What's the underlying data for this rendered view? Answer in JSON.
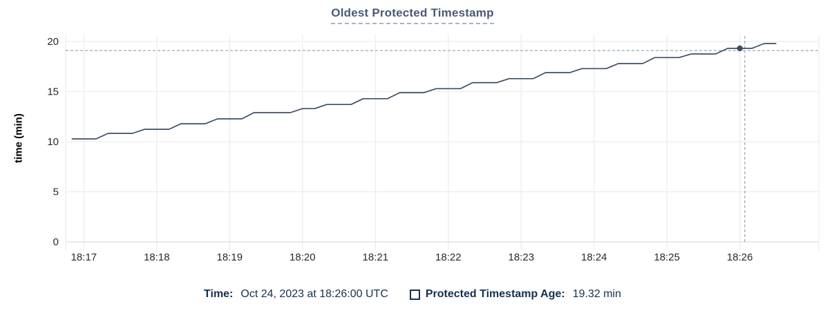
{
  "colors": {
    "line": "#3e4d63",
    "grid": "#efefef",
    "axis": "#e3e3e3",
    "tick_text": "#24292f",
    "title": "#4a5a74",
    "title_underline": "#a7b2c3",
    "legend_text": "#14304f",
    "crosshair": "#a3b8c4",
    "background": "#ffffff"
  },
  "chart_data": {
    "type": "line",
    "title": "Oldest Protected Timestamp",
    "xlabel": "",
    "ylabel": "time (min)",
    "grid": true,
    "x_domain": [
      "18:16:45",
      "18:27:05"
    ],
    "y_domain": [
      0,
      20.7
    ],
    "y_ticks": [
      0,
      5,
      10,
      15,
      20
    ],
    "x_ticks": [
      "18:17",
      "18:18",
      "18:19",
      "18:20",
      "18:21",
      "18:22",
      "18:23",
      "18:24",
      "18:25",
      "18:26"
    ],
    "series": [
      {
        "name": "Protected Timestamp Age",
        "color": "#3e4d63",
        "points": [
          [
            "18:16:50",
            10.28
          ],
          [
            "18:17:10",
            10.28
          ],
          [
            "18:17:20",
            10.83
          ],
          [
            "18:17:40",
            10.83
          ],
          [
            "18:17:50",
            11.24
          ],
          [
            "18:18:10",
            11.24
          ],
          [
            "18:18:20",
            11.79
          ],
          [
            "18:18:40",
            11.79
          ],
          [
            "18:18:50",
            12.28
          ],
          [
            "18:19:10",
            12.28
          ],
          [
            "18:19:20",
            12.9
          ],
          [
            "18:19:50",
            12.9
          ],
          [
            "18:20:00",
            13.3
          ],
          [
            "18:20:10",
            13.3
          ],
          [
            "18:20:20",
            13.72
          ],
          [
            "18:20:40",
            13.72
          ],
          [
            "18:20:50",
            14.3
          ],
          [
            "18:21:10",
            14.3
          ],
          [
            "18:21:20",
            14.9
          ],
          [
            "18:21:40",
            14.9
          ],
          [
            "18:21:50",
            15.3
          ],
          [
            "18:22:10",
            15.3
          ],
          [
            "18:22:20",
            15.9
          ],
          [
            "18:22:40",
            15.9
          ],
          [
            "18:22:50",
            16.3
          ],
          [
            "18:23:10",
            16.3
          ],
          [
            "18:23:20",
            16.9
          ],
          [
            "18:23:40",
            16.9
          ],
          [
            "18:23:50",
            17.3
          ],
          [
            "18:24:10",
            17.3
          ],
          [
            "18:24:20",
            17.8
          ],
          [
            "18:24:40",
            17.8
          ],
          [
            "18:24:50",
            18.4
          ],
          [
            "18:25:10",
            18.4
          ],
          [
            "18:25:20",
            18.76
          ],
          [
            "18:25:40",
            18.76
          ],
          [
            "18:25:50",
            19.32
          ],
          [
            "18:26:10",
            19.32
          ],
          [
            "18:26:20",
            19.8
          ],
          [
            "18:26:30",
            19.8
          ]
        ]
      }
    ],
    "hover": {
      "point_time": "18:26:00",
      "point_value": 19.32,
      "crosshair_time": "18:26:04",
      "crosshair_value": 19.1
    },
    "legend_position": "bottom-center"
  },
  "legend": {
    "time_key": "Time:",
    "time_value": "Oct 24, 2023 at 18:26:00 UTC",
    "series_key": "Protected Timestamp Age:",
    "series_value": "19.32 min"
  }
}
